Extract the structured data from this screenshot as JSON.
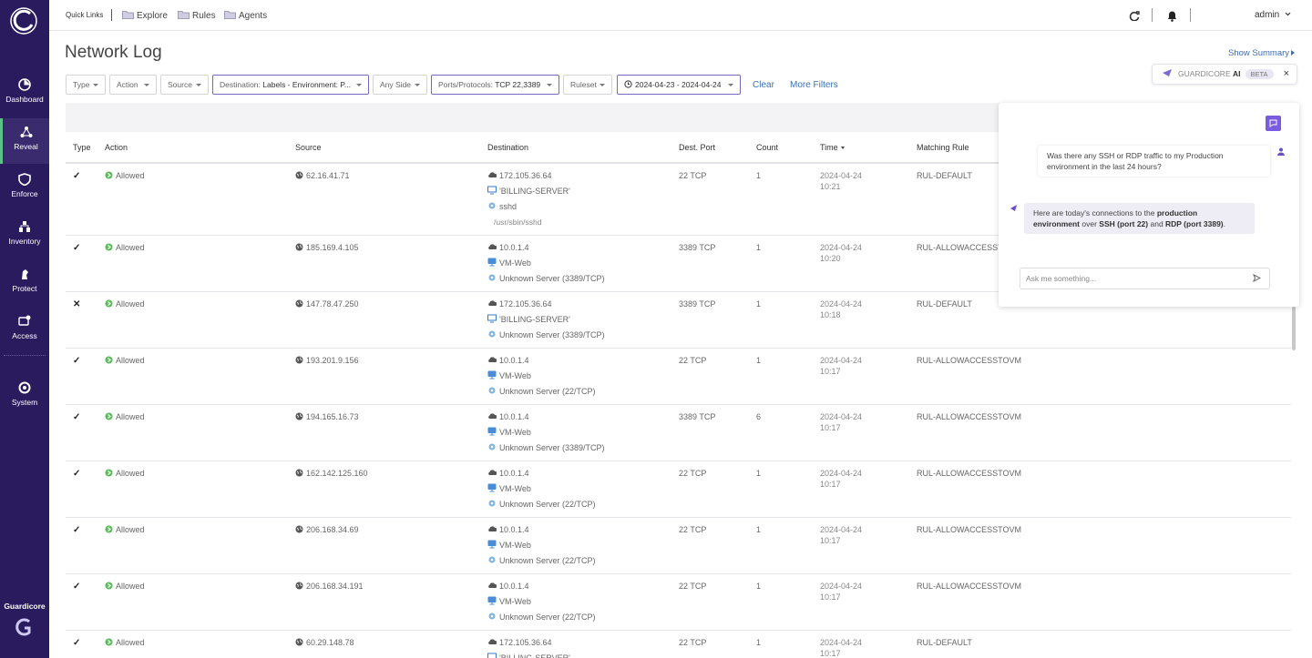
{
  "sidebar": {
    "items": [
      "Dashboard",
      "Reveal",
      "Enforce",
      "Inventory",
      "Protect",
      "Access",
      "System"
    ],
    "active": 1,
    "brand": "Guardicore"
  },
  "topbar": {
    "quick_links_label": "Quick Links",
    "links": [
      "Explore",
      "Rules",
      "Agents"
    ],
    "user": "admin"
  },
  "header": {
    "title": "Network Log",
    "show_summary": "Show Summary"
  },
  "filters": [
    {
      "label": "Type"
    },
    {
      "label": "Action"
    },
    {
      "label": "Source"
    },
    {
      "label": "Destination:",
      "value": "Labels - Environment: P...",
      "active": true
    },
    {
      "label": "Any Side"
    },
    {
      "label": "Ports/Protocols:",
      "value": "TCP 22,3389",
      "active": true
    },
    {
      "label": "Ruleset"
    },
    {
      "value": "2024-04-23 - 2024-04-24",
      "active": true
    }
  ],
  "filter_actions": [
    "Clear",
    "More Filters"
  ],
  "ai_badge": {
    "name": "GUARDICORE",
    "suffix": "AI",
    "tag": "BETA"
  },
  "table": {
    "columns": [
      "Type",
      "Action",
      "Source",
      "Destination",
      "Dest. Port",
      "Count",
      "Time",
      "Matching Rule"
    ],
    "rows": [
      {
        "type": "✓",
        "action": "Allowed",
        "source": "62.16.41.71",
        "destination": [
          "172.105.36.64",
          "'BILLING-SERVER'",
          "sshd",
          "/usr/sbin/sshd"
        ],
        "port": "22 TCP",
        "count": 1,
        "date": "2024-04-24",
        "time": "10:21",
        "rule": "RUL-DEFAULT"
      },
      {
        "type": "✓",
        "action": "Allowed",
        "source": "185.169.4.105",
        "destination": [
          "10.0.1.4",
          "VM-Web",
          "Unknown Server (3389/TCP)"
        ],
        "port": "3389 TCP",
        "count": 1,
        "date": "2024-04-24",
        "time": "10:20",
        "rule": "RUL-ALLOWACCESSTOVM"
      },
      {
        "type": "✕",
        "action": "Allowed",
        "source": "147.78.47.250",
        "destination": [
          "172.105.36.64",
          "'BILLING-SERVER'",
          "Unknown Server (3389/TCP)"
        ],
        "port": "3389 TCP",
        "count": 1,
        "date": "2024-04-24",
        "time": "10:18",
        "rule": "RUL-DEFAULT"
      },
      {
        "type": "✓",
        "action": "Allowed",
        "source": "193.201.9.156",
        "destination": [
          "10.0.1.4",
          "VM-Web",
          "Unknown Server (22/TCP)"
        ],
        "port": "22 TCP",
        "count": 1,
        "date": "2024-04-24",
        "time": "10:17",
        "rule": "RUL-ALLOWACCESSTOVM"
      },
      {
        "type": "✓",
        "action": "Allowed",
        "source": "194.165.16.73",
        "destination": [
          "10.0.1.4",
          "VM-Web",
          "Unknown Server (3389/TCP)"
        ],
        "port": "3389 TCP",
        "count": 6,
        "date": "2024-04-24",
        "time": "10:17",
        "rule": "RUL-ALLOWACCESSTOVM"
      },
      {
        "type": "✓",
        "action": "Allowed",
        "source": "162.142.125.160",
        "destination": [
          "10.0.1.4",
          "VM-Web",
          "Unknown Server (22/TCP)"
        ],
        "port": "22 TCP",
        "count": 1,
        "date": "2024-04-24",
        "time": "10:17",
        "rule": "RUL-ALLOWACCESSTOVM"
      },
      {
        "type": "✓",
        "action": "Allowed",
        "source": "206.168.34.69",
        "destination": [
          "10.0.1.4",
          "VM-Web",
          "Unknown Server (22/TCP)"
        ],
        "port": "22 TCP",
        "count": 1,
        "date": "2024-04-24",
        "time": "10:17",
        "rule": "RUL-ALLOWACCESSTOVM"
      },
      {
        "type": "✓",
        "action": "Allowed",
        "source": "206.168.34.191",
        "destination": [
          "10.0.1.4",
          "VM-Web",
          "Unknown Server (22/TCP)"
        ],
        "port": "22 TCP",
        "count": 1,
        "date": "2024-04-24",
        "time": "10:17",
        "rule": "RUL-ALLOWACCESSTOVM"
      },
      {
        "type": "✓",
        "action": "Allowed",
        "source": "60.29.148.78",
        "destination": [
          "172.105.36.64",
          "'BILLING-SERVER'"
        ],
        "port": "22 TCP",
        "count": 1,
        "date": "2024-04-24",
        "time": "10:17",
        "rule": "RUL-DEFAULT"
      }
    ]
  },
  "chat": {
    "user_message": "Was there any SSH or RDP traffic to my Production environment in the last 24 hours?",
    "ai_message": [
      {
        "text": "Here are today's connections to the "
      },
      {
        "text": "production environment",
        "bold": true
      },
      {
        "text": " over "
      },
      {
        "text": "SSH (port 22)",
        "bold": true
      },
      {
        "text": " and "
      },
      {
        "text": "RDP (port 3389)",
        "bold": true
      },
      {
        "text": "."
      }
    ],
    "placeholder": "Ask me something..."
  }
}
